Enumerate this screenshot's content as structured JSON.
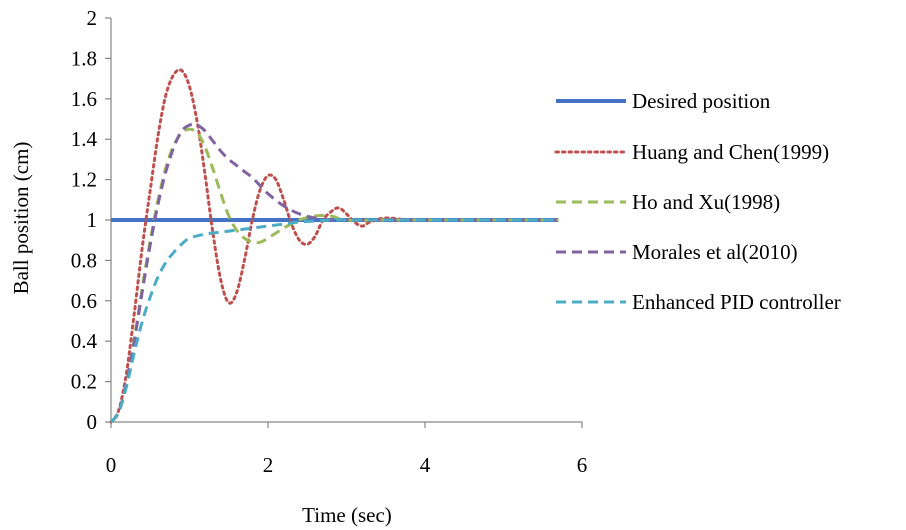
{
  "chart_data": {
    "type": "line",
    "title": "",
    "xlabel": "Time (sec)",
    "ylabel": "Ball position (cm)",
    "xlim": [
      0,
      6
    ],
    "ylim": [
      0,
      2
    ],
    "xticks": [
      "0",
      "2",
      "4",
      "6"
    ],
    "yticks": [
      "0",
      "0.2",
      "0.4",
      "0.6",
      "0.8",
      "1",
      "1.2",
      "1.4",
      "1.6",
      "1.8",
      "2"
    ],
    "grid": false,
    "legend_position": "right",
    "series": [
      {
        "name": "Desired position",
        "color": "#4472C4",
        "style": "solid",
        "x": [
          0,
          5.7
        ],
        "y": [
          1,
          1
        ]
      },
      {
        "name": "Huang and Chen(1999)",
        "color": "#C0504D",
        "style": "dotted",
        "x": [
          0,
          0.1,
          0.2,
          0.3,
          0.4,
          0.5,
          0.6,
          0.7,
          0.8,
          0.9,
          1.0,
          1.1,
          1.2,
          1.3,
          1.4,
          1.5,
          1.6,
          1.7,
          1.8,
          1.9,
          2.0,
          2.1,
          2.2,
          2.3,
          2.4,
          2.5,
          2.6,
          2.7,
          2.8,
          2.9,
          3.0,
          3.1,
          3.2,
          3.3,
          3.5,
          3.8,
          4.2,
          5.0,
          5.7
        ],
        "y": [
          0,
          0.06,
          0.25,
          0.55,
          0.87,
          1.15,
          1.42,
          1.62,
          1.72,
          1.74,
          1.66,
          1.48,
          1.22,
          0.93,
          0.7,
          0.59,
          0.64,
          0.8,
          1.0,
          1.15,
          1.22,
          1.2,
          1.1,
          0.98,
          0.9,
          0.88,
          0.92,
          1.0,
          1.04,
          1.06,
          1.03,
          0.99,
          0.97,
          0.99,
          1.01,
          1.0,
          1.0,
          1.0,
          1.0
        ]
      },
      {
        "name": "Ho and Xu(1998)",
        "color": "#9BBB59",
        "style": "dashed",
        "x": [
          0,
          0.1,
          0.2,
          0.3,
          0.4,
          0.5,
          0.6,
          0.7,
          0.8,
          0.9,
          1.0,
          1.1,
          1.2,
          1.3,
          1.4,
          1.5,
          1.6,
          1.7,
          1.8,
          1.9,
          2.0,
          2.2,
          2.4,
          2.6,
          2.8,
          3.0,
          3.5,
          4.0,
          5.0,
          5.7
        ],
        "y": [
          0,
          0.05,
          0.2,
          0.42,
          0.67,
          0.9,
          1.1,
          1.26,
          1.37,
          1.43,
          1.45,
          1.43,
          1.36,
          1.25,
          1.13,
          1.02,
          0.95,
          0.91,
          0.89,
          0.89,
          0.91,
          0.96,
          1.0,
          1.02,
          1.02,
          1.0,
          1.0,
          1.0,
          1.0,
          1.0
        ]
      },
      {
        "name": "Morales et al(2010)",
        "color": "#8064A2",
        "style": "dashed",
        "x": [
          0,
          0.1,
          0.2,
          0.3,
          0.4,
          0.5,
          0.6,
          0.7,
          0.8,
          0.9,
          1.0,
          1.1,
          1.2,
          1.3,
          1.4,
          1.5,
          1.6,
          1.7,
          1.8,
          1.9,
          2.0,
          2.2,
          2.4,
          2.6,
          2.8,
          3.0,
          3.5,
          4.0,
          5.0,
          5.7
        ],
        "y": [
          0,
          0.05,
          0.2,
          0.41,
          0.65,
          0.88,
          1.08,
          1.24,
          1.36,
          1.44,
          1.47,
          1.47,
          1.44,
          1.39,
          1.34,
          1.3,
          1.27,
          1.24,
          1.21,
          1.17,
          1.13,
          1.07,
          1.03,
          1.01,
          1.0,
          1.0,
          1.0,
          1.0,
          1.0,
          1.0
        ]
      },
      {
        "name": "Enhanced PID controller",
        "color": "#4BACC6",
        "style": "dashed",
        "x": [
          0,
          0.1,
          0.2,
          0.3,
          0.4,
          0.5,
          0.6,
          0.7,
          0.8,
          0.9,
          1.0,
          1.2,
          1.4,
          1.6,
          1.8,
          2.0,
          2.2,
          2.4,
          2.6,
          2.8,
          3.0,
          3.5,
          4.0,
          5.0,
          5.7
        ],
        "y": [
          0,
          0.05,
          0.18,
          0.35,
          0.5,
          0.62,
          0.72,
          0.79,
          0.84,
          0.88,
          0.91,
          0.93,
          0.94,
          0.95,
          0.96,
          0.97,
          0.98,
          0.99,
          0.995,
          1.0,
          1.0,
          1.0,
          1.0,
          1.0,
          1.0
        ]
      }
    ]
  }
}
